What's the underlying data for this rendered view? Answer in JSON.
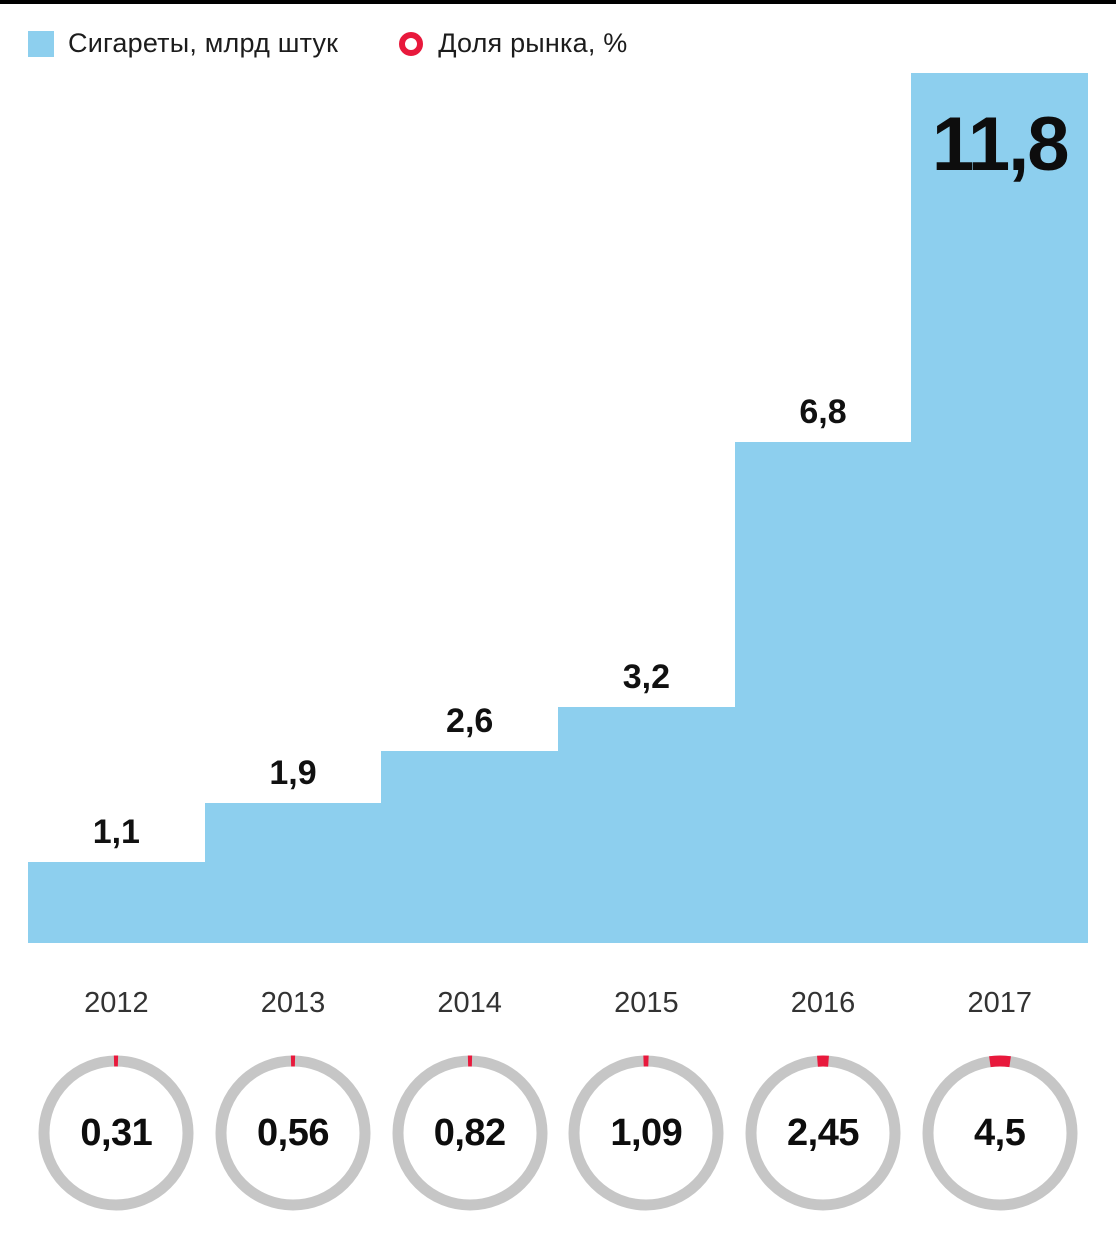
{
  "legend": {
    "bars_label": "Сигареты, млрд штук",
    "rings_label": "Доля рынка, %"
  },
  "colors": {
    "bar": "#8dcfee",
    "accent": "#e8193c",
    "ring_gray": "#c6c6c6"
  },
  "chart_data": {
    "type": "bar",
    "title": "",
    "categories": [
      "2012",
      "2013",
      "2014",
      "2015",
      "2016",
      "2017"
    ],
    "series": [
      {
        "name": "Сигареты, млрд штук",
        "values": [
          1.1,
          1.9,
          2.6,
          3.2,
          6.8,
          11.8
        ],
        "labels": [
          "1,1",
          "1,9",
          "2,6",
          "3,2",
          "6,8",
          "11,8"
        ]
      },
      {
        "name": "Доля рынка, %",
        "values": [
          0.31,
          0.56,
          0.82,
          1.09,
          2.45,
          4.5
        ],
        "labels": [
          "0,31",
          "0,56",
          "0,82",
          "1,09",
          "2,45",
          "4,5"
        ]
      }
    ],
    "xlabel": "",
    "ylabel": "",
    "ylim": [
      0,
      11.8
    ],
    "grid": false,
    "legend_position": "top"
  }
}
